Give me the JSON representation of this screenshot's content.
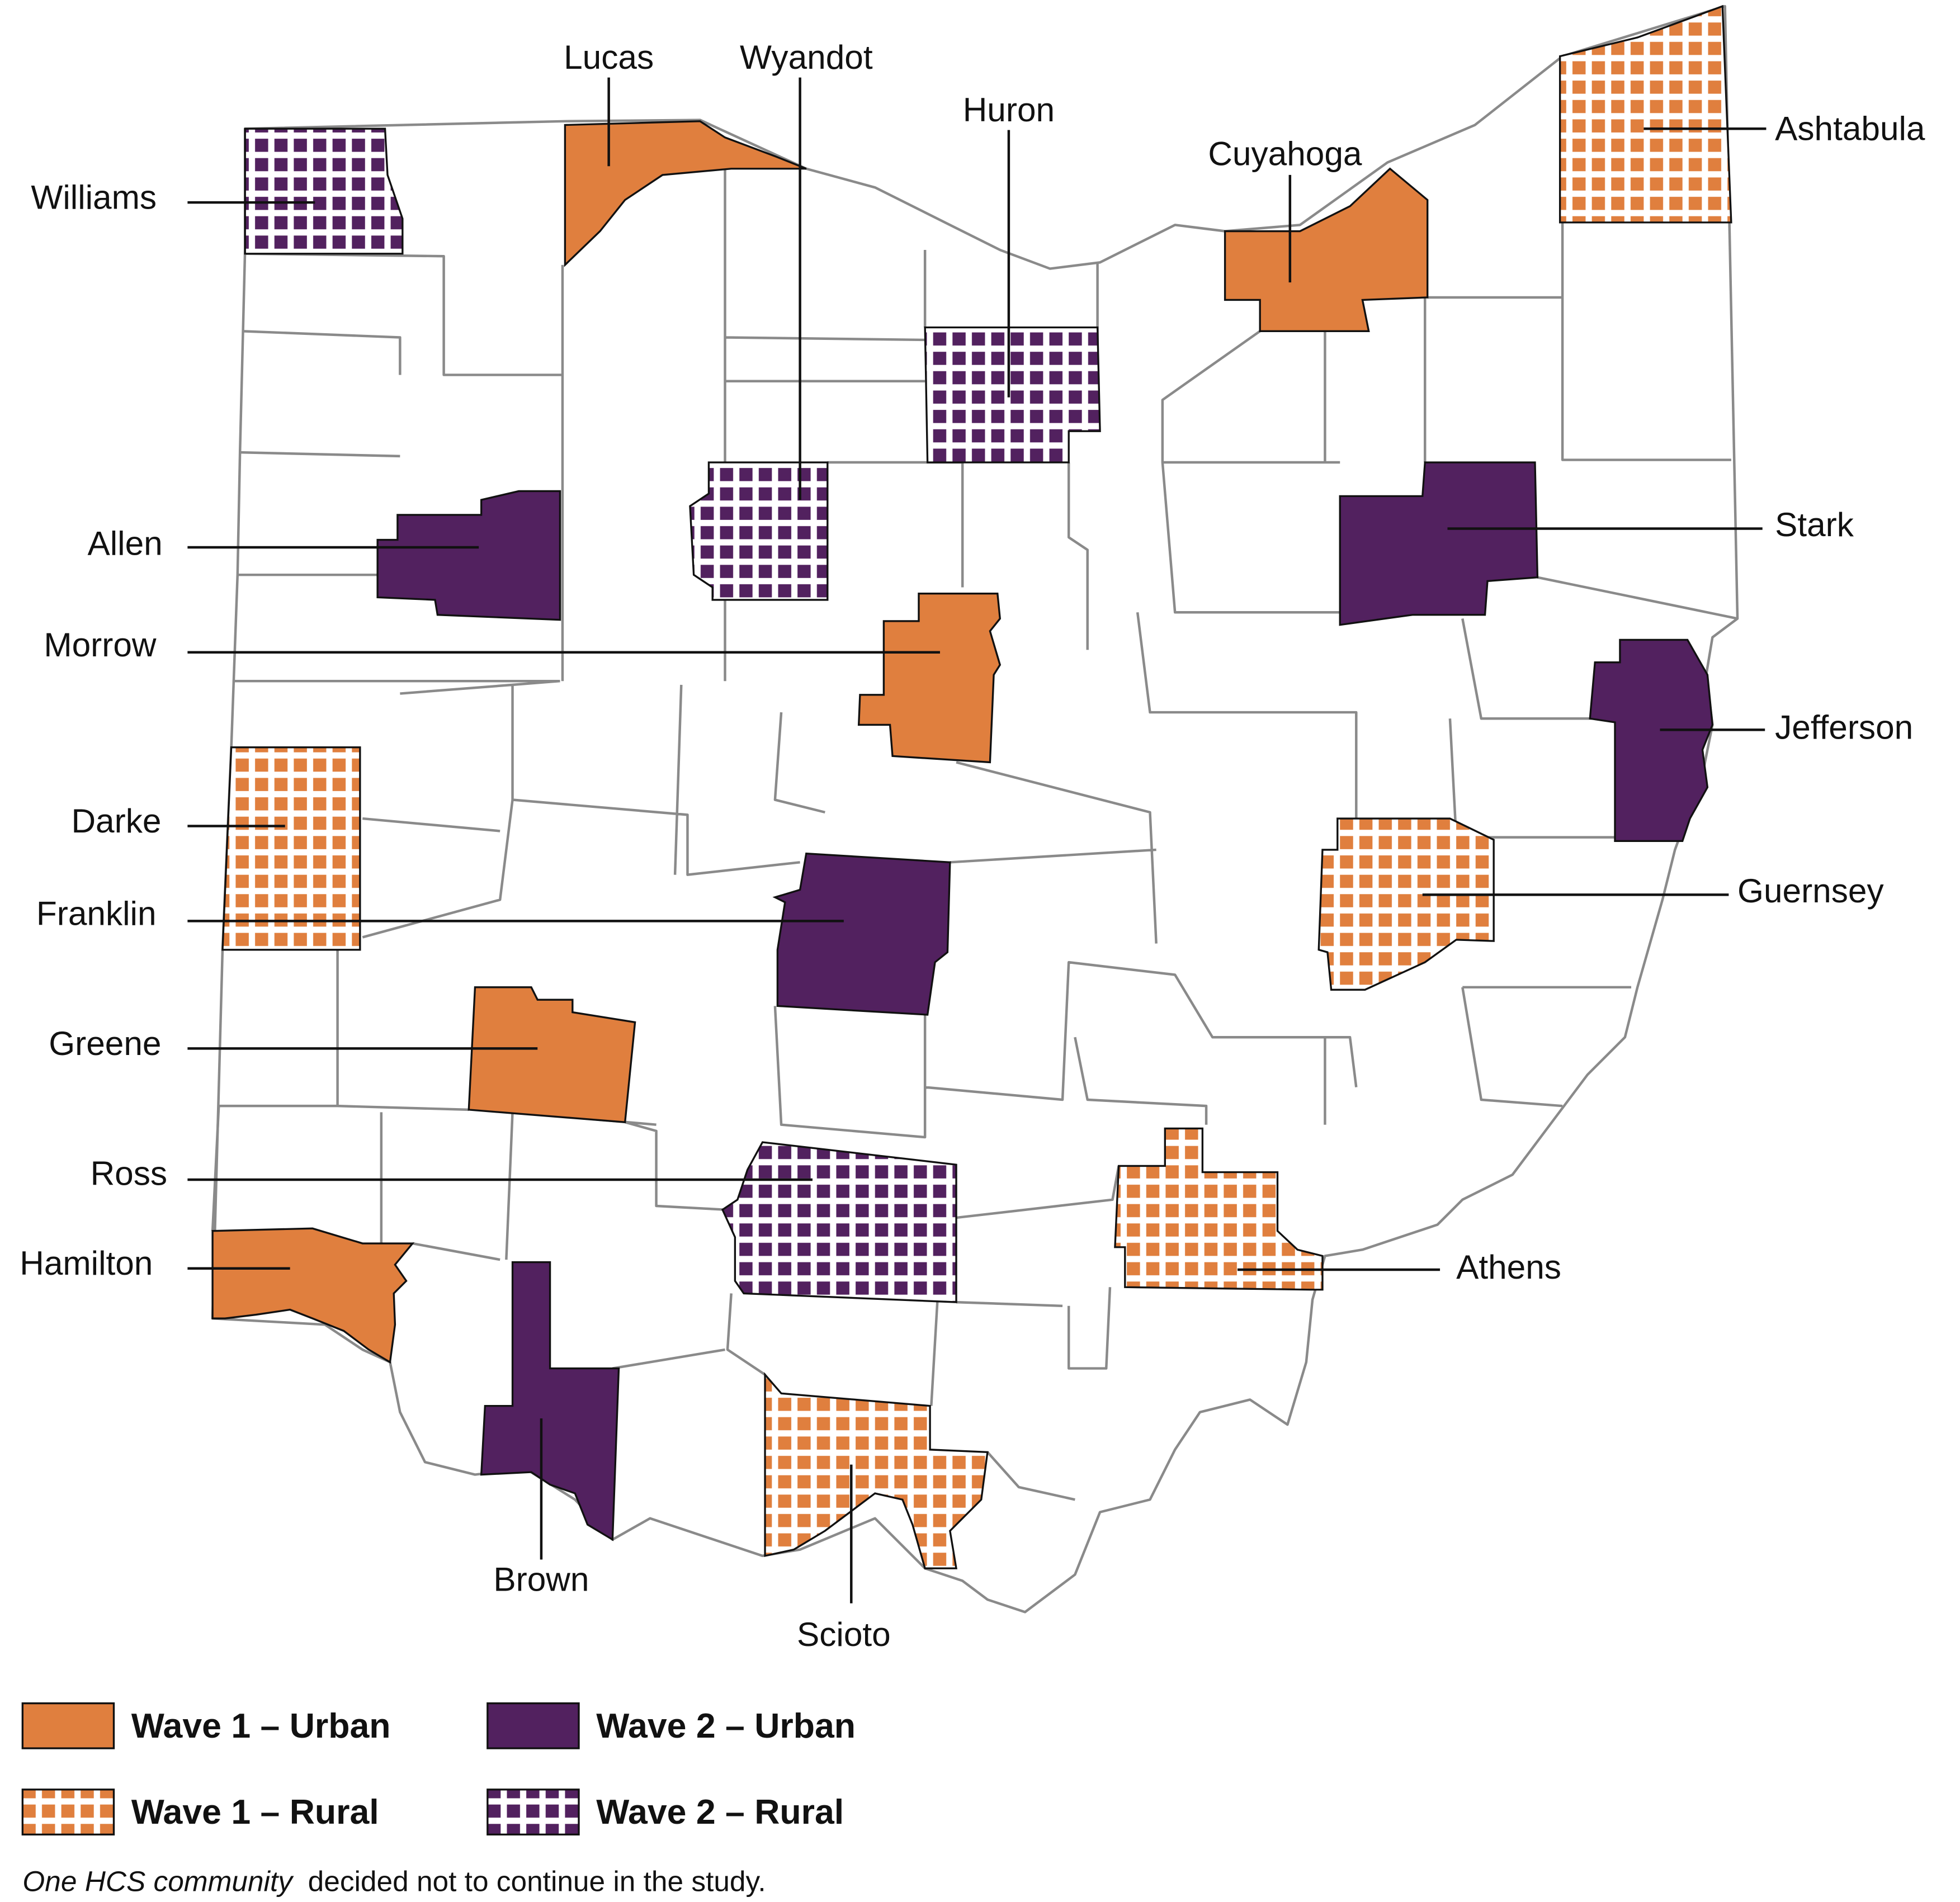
{
  "counties": [
    {
      "name": "Williams",
      "group": "Wave 2 – Rural"
    },
    {
      "name": "Lucas",
      "group": "Wave 1 – Urban"
    },
    {
      "name": "Wyandot",
      "group": "Wave 2 – Rural"
    },
    {
      "name": "Huron",
      "group": "Wave 2 – Rural"
    },
    {
      "name": "Cuyahoga",
      "group": "Wave 1 – Urban"
    },
    {
      "name": "Ashtabula",
      "group": "Wave 1 – Rural"
    },
    {
      "name": "Allen",
      "group": "Wave 2 – Urban"
    },
    {
      "name": "Morrow",
      "group": "Wave 1 – Urban"
    },
    {
      "name": "Stark",
      "group": "Wave 2 – Urban"
    },
    {
      "name": "Jefferson",
      "group": "Wave 2 – Urban"
    },
    {
      "name": "Darke",
      "group": "Wave 1 – Rural"
    },
    {
      "name": "Franklin",
      "group": "Wave 2 – Urban"
    },
    {
      "name": "Guernsey",
      "group": "Wave 1 – Rural"
    },
    {
      "name": "Greene",
      "group": "Wave 1 – Urban"
    },
    {
      "name": "Ross",
      "group": "Wave 2 – Rural"
    },
    {
      "name": "Athens",
      "group": "Wave 1 – Rural"
    },
    {
      "name": "Hamilton",
      "group": "Wave 1 – Urban"
    },
    {
      "name": "Brown",
      "group": "Wave 2 – Urban"
    },
    {
      "name": "Scioto",
      "group": "Wave 1 – Rural"
    }
  ],
  "legend": [
    {
      "label": "Wave 1 – Urban",
      "color": "#e07f3e",
      "pattern": "solid"
    },
    {
      "label": "Wave 2 – Urban",
      "color": "#52215f",
      "pattern": "solid"
    },
    {
      "label": "Wave 1 – Rural",
      "color": "#e07f3e",
      "pattern": "grid"
    },
    {
      "label": "Wave 2 – Rural",
      "color": "#52215f",
      "pattern": "grid"
    }
  ],
  "footnote": {
    "emphasis": "One HCS community",
    "text": "decided not to continue in the study."
  }
}
